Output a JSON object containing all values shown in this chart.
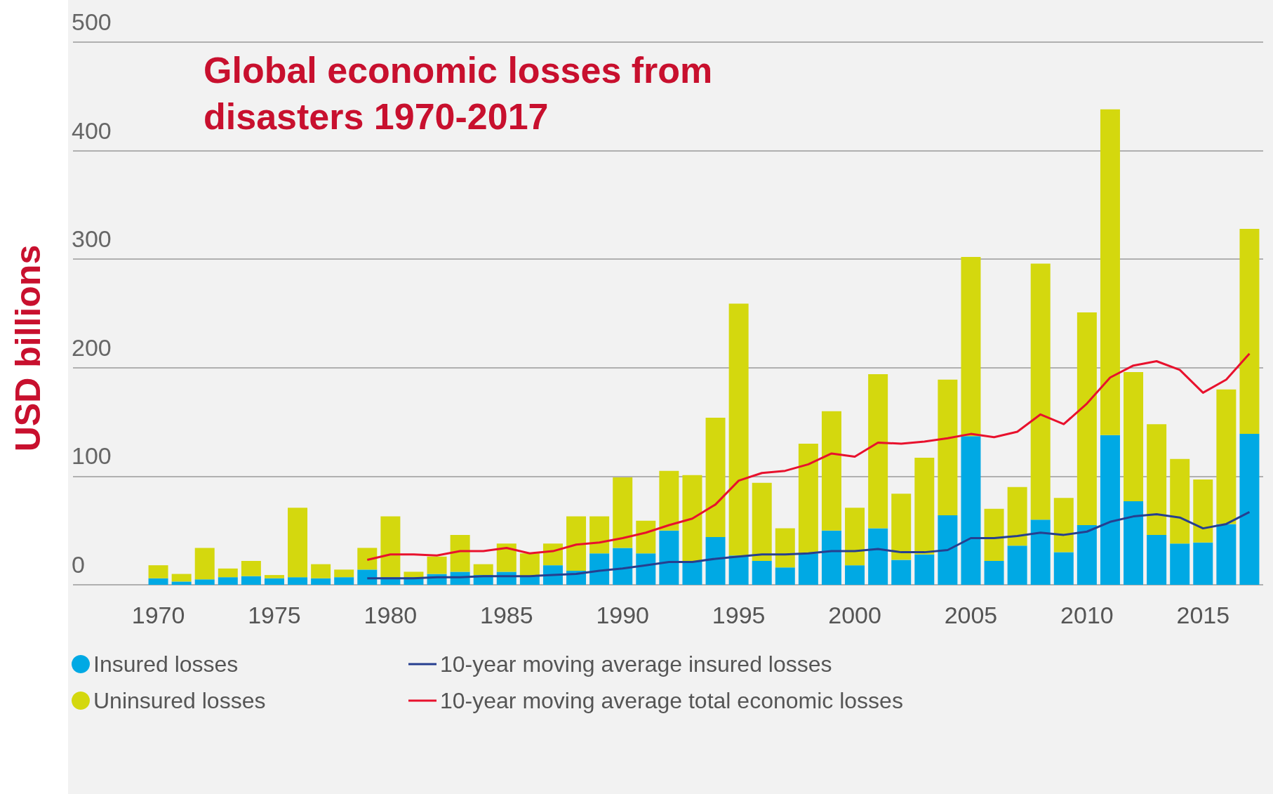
{
  "chart_data": {
    "type": "bar",
    "title": "Global economic losses from\ndisasters 1970-2017",
    "ylabel": "USD billions",
    "categories": [
      "1970",
      null,
      null,
      null,
      null,
      "1975",
      null,
      null,
      null,
      null,
      "1980",
      null,
      null,
      null,
      null,
      "1985",
      null,
      null,
      null,
      null,
      "1990",
      null,
      null,
      null,
      null,
      "1995",
      null,
      null,
      null,
      null,
      "2000",
      null,
      null,
      null,
      null,
      "2005",
      null,
      null,
      null,
      null,
      "2010",
      null,
      null,
      null,
      null,
      "2015",
      null,
      null
    ],
    "stacked": true,
    "ylim": [
      0,
      500
    ],
    "yticks": [
      0,
      100,
      200,
      300,
      400,
      500
    ],
    "grid": "y",
    "legend": "bottom",
    "series": [
      {
        "name": "Insured losses",
        "color": "#00a9e4",
        "values": [
          6,
          3,
          5,
          7,
          8,
          6,
          7,
          6,
          7,
          14,
          7,
          7,
          10,
          12,
          9,
          12,
          8,
          18,
          13,
          29,
          34,
          29,
          50,
          22,
          44,
          27,
          22,
          16,
          29,
          50,
          18,
          52,
          23,
          28,
          64,
          137,
          22,
          36,
          60,
          30,
          55,
          138,
          77,
          46,
          38,
          39,
          56,
          139
        ]
      },
      {
        "name": "Uninsured losses",
        "color": "#d4d80e",
        "values": [
          12,
          7,
          29,
          8,
          14,
          3,
          64,
          13,
          7,
          20,
          56,
          5,
          16,
          34,
          10,
          26,
          21,
          20,
          50,
          34,
          65,
          30,
          55,
          79,
          110,
          232,
          72,
          36,
          101,
          110,
          53,
          142,
          61,
          89,
          125,
          165,
          48,
          54,
          236,
          50,
          196,
          300,
          119,
          102,
          78,
          58,
          124,
          189
        ]
      },
      {
        "name": "10-year moving average insured losses",
        "type": "line",
        "color": "#263f8f",
        "marker": "none",
        "values": [
          null,
          null,
          null,
          null,
          null,
          null,
          null,
          null,
          null,
          6,
          6,
          6,
          7,
          7,
          8,
          8,
          8,
          9,
          10,
          13,
          15,
          18,
          21,
          21,
          24,
          26,
          28,
          28,
          29,
          31,
          31,
          33,
          30,
          30,
          32,
          43,
          43,
          45,
          48,
          46,
          49,
          58,
          63,
          65,
          62,
          52,
          56,
          67
        ]
      },
      {
        "name": "10-year moving average total economic losses",
        "type": "line",
        "color": "#e8112d",
        "marker": "none",
        "values": [
          null,
          null,
          null,
          null,
          null,
          null,
          null,
          null,
          null,
          23,
          28,
          28,
          27,
          31,
          31,
          34,
          29,
          31,
          37,
          39,
          43,
          48,
          55,
          61,
          74,
          96,
          103,
          105,
          111,
          121,
          118,
          131,
          130,
          132,
          135,
          139,
          136,
          141,
          157,
          148,
          167,
          191,
          202,
          206,
          198,
          177,
          189,
          213
        ]
      }
    ]
  }
}
